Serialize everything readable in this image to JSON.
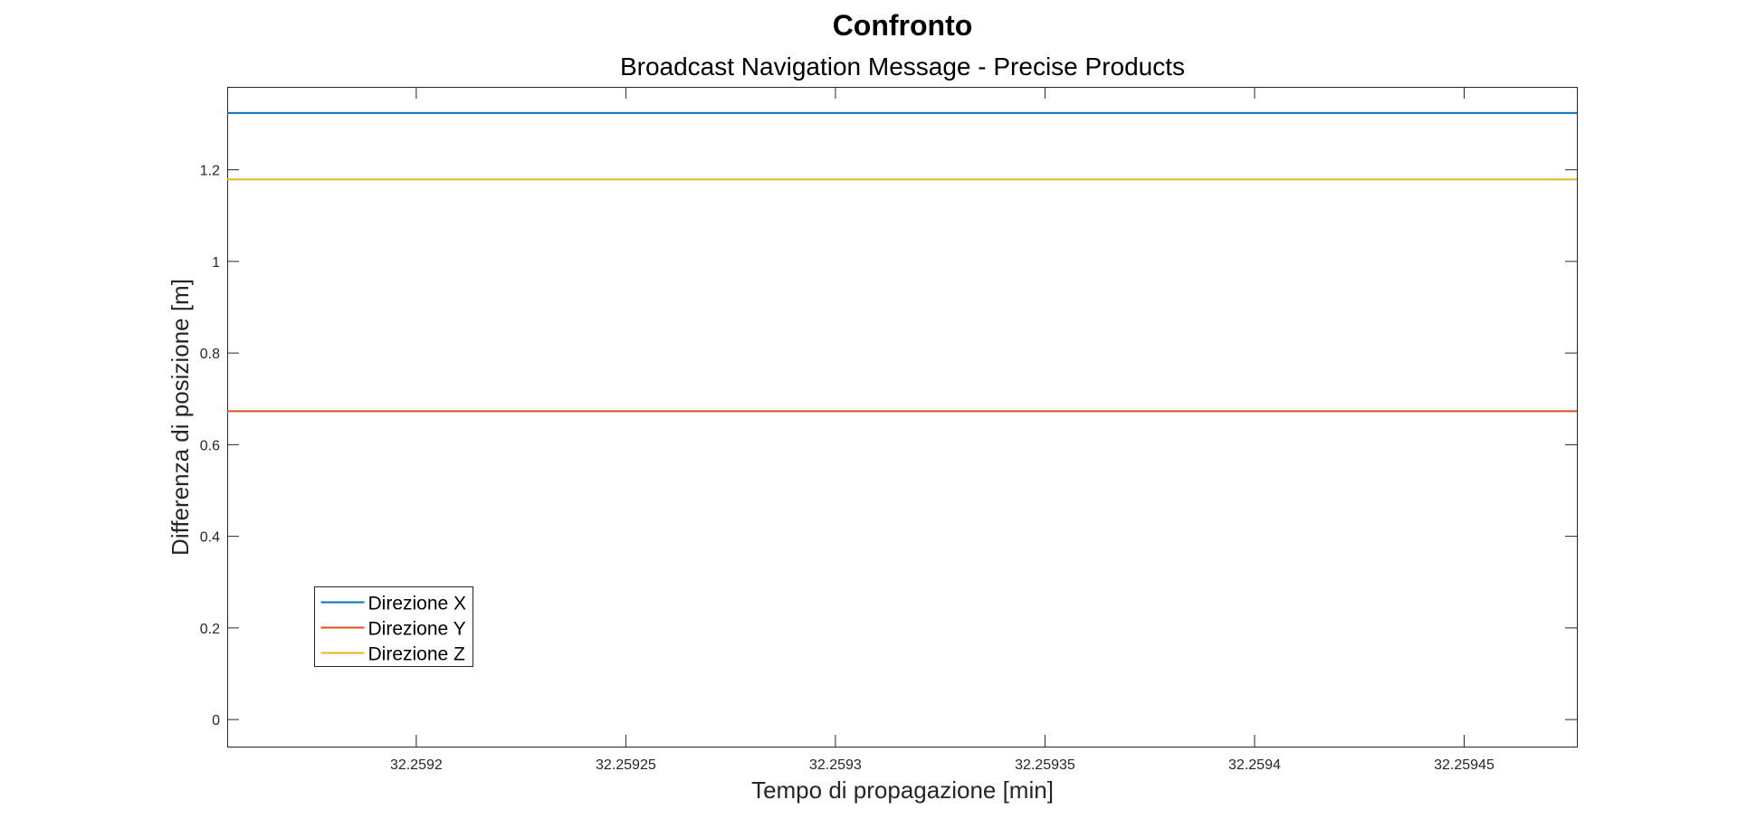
{
  "chart_data": {
    "type": "line",
    "title": "Confronto",
    "subtitle": "Broadcast Navigation Message - Precise Products",
    "xlabel": "Tempo di propagazione [min]",
    "ylabel": "Differenza di posizione [m]",
    "xlim": [
      32.259155,
      32.259477
    ],
    "ylim": [
      -0.06,
      1.38
    ],
    "x_ticks": [
      32.2592,
      32.25925,
      32.2593,
      32.25935,
      32.2594,
      32.25945
    ],
    "x_tick_labels": [
      "32.2592",
      "32.25925",
      "32.2593",
      "32.25935",
      "32.2594",
      "32.25945"
    ],
    "y_ticks": [
      0,
      0.2,
      0.4,
      0.6,
      0.8,
      1.0,
      1.2
    ],
    "y_tick_labels": [
      "0",
      "0.2",
      "0.4",
      "0.6",
      "0.8",
      "1",
      "1.2"
    ],
    "grid": false,
    "legend_position": "bottom-left",
    "series": [
      {
        "name": "Direzione X",
        "color": "#0072BD",
        "x": [
          32.259155,
          32.259477
        ],
        "y": [
          1.323,
          1.323
        ]
      },
      {
        "name": "Direzione Y",
        "color": "#D95319",
        "x": [
          32.259155,
          32.259477
        ],
        "y": [
          0.672,
          0.672
        ]
      },
      {
        "name": "Direzione Z",
        "color": "#EDB120",
        "x": [
          32.259155,
          32.259477
        ],
        "y": [
          1.178,
          1.178
        ]
      }
    ]
  }
}
